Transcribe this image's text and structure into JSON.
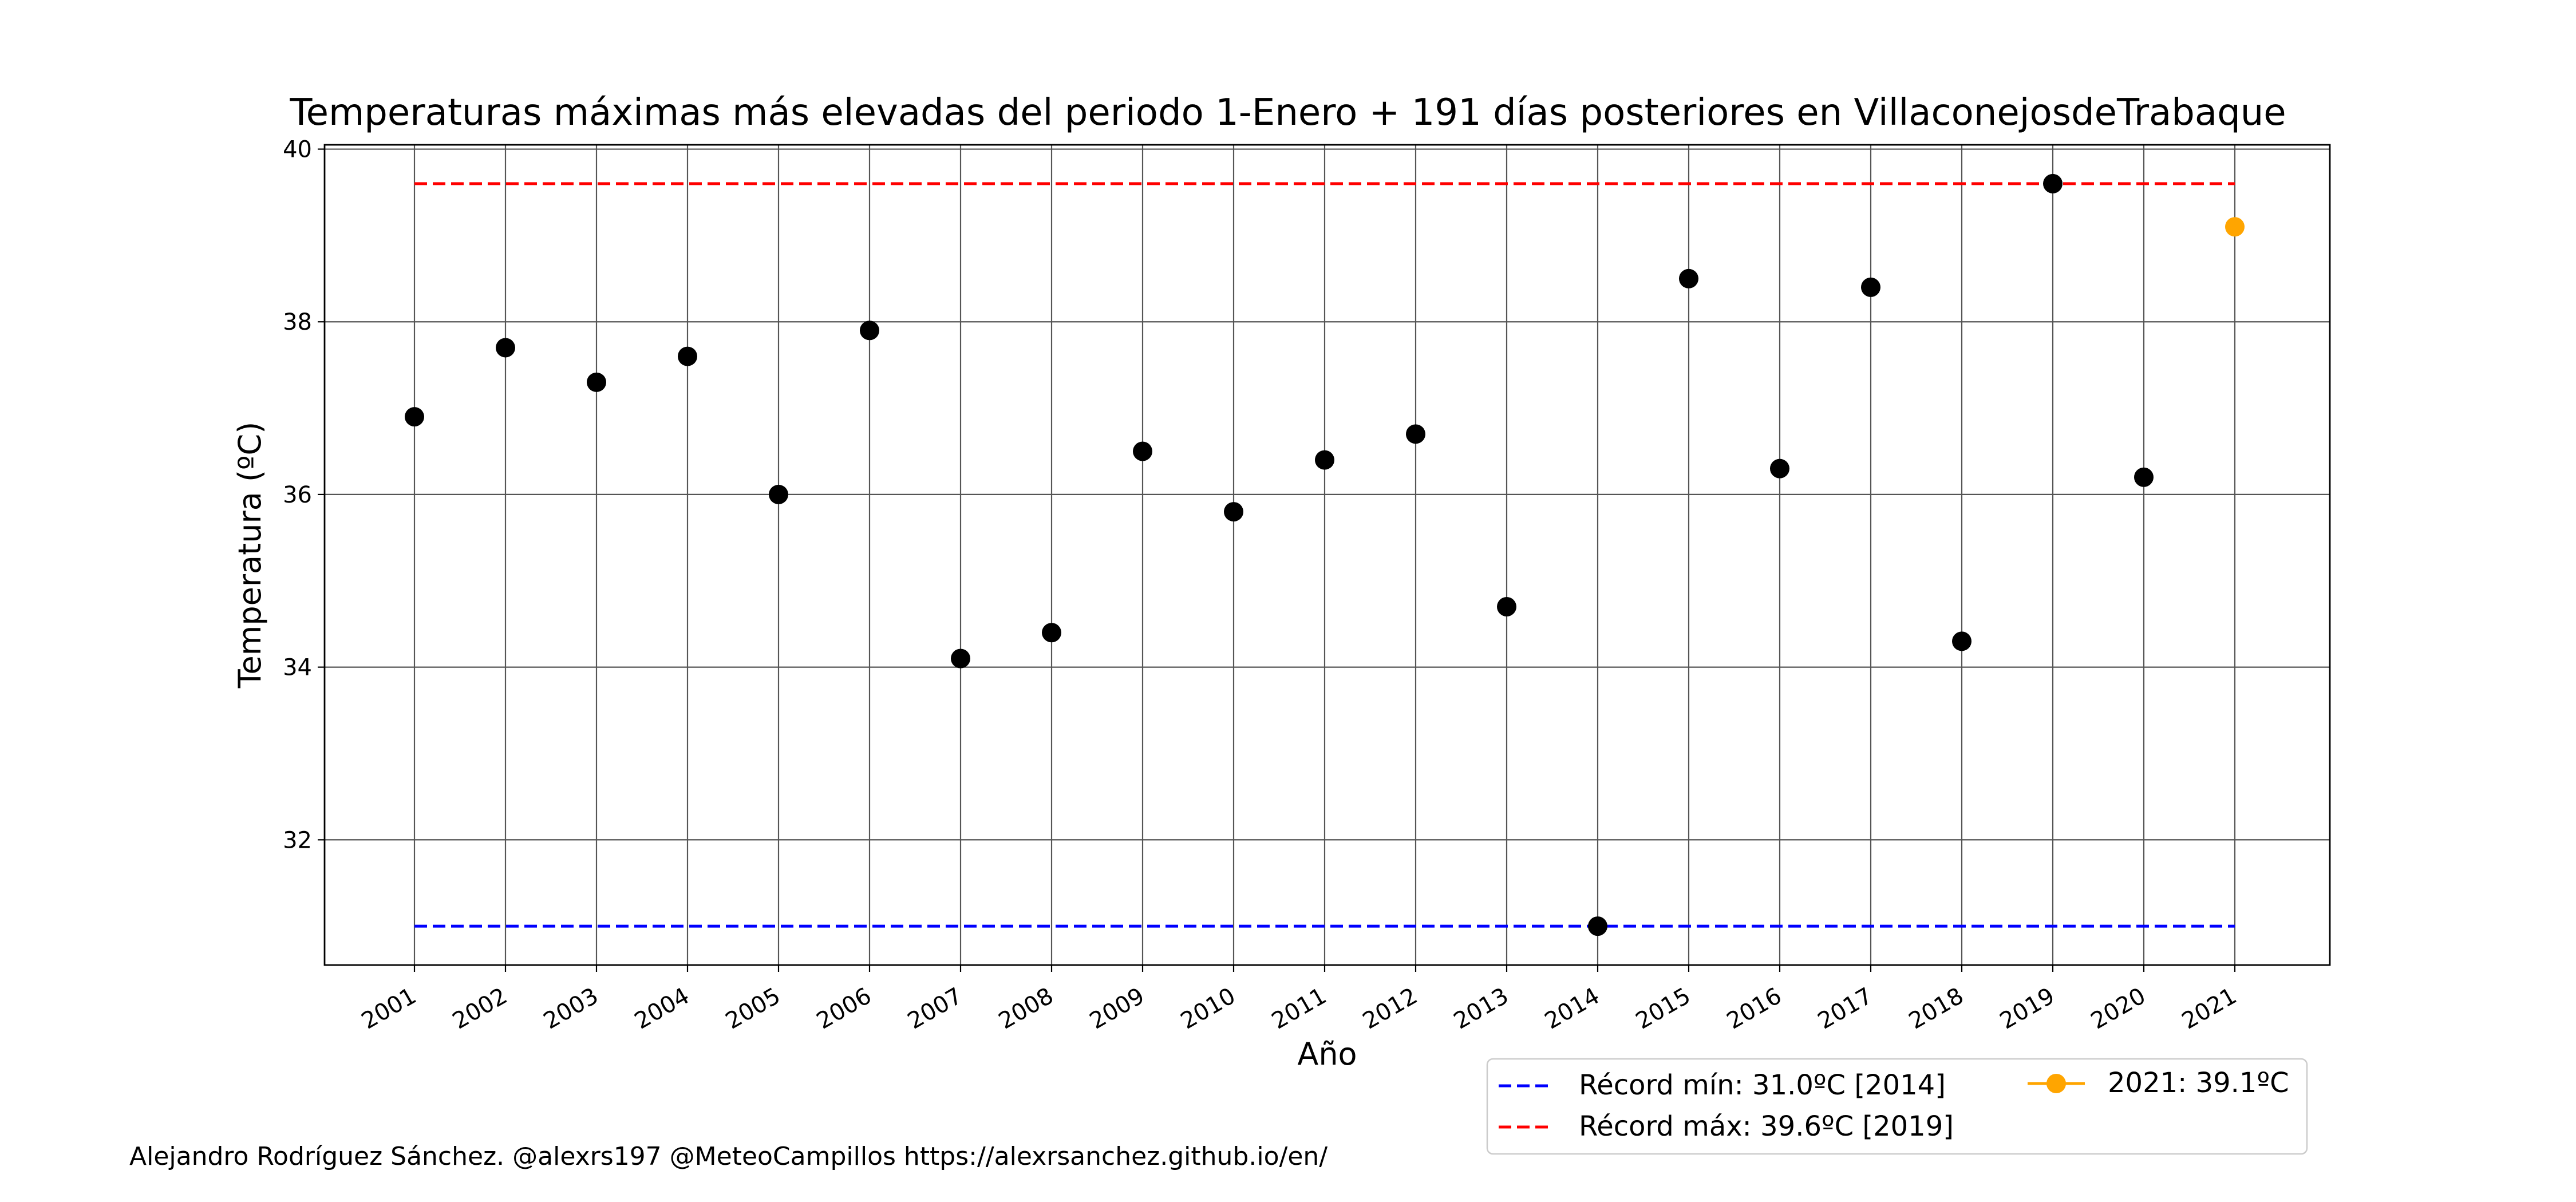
{
  "chart_data": {
    "type": "scatter",
    "title": "Temperaturas máximas más elevadas del periodo 1-Enero + 191 días posteriores en VillaconejosdeTrabaque",
    "xlabel": "Año",
    "ylabel": "Temperatura (ºC)",
    "categories": [
      "2001",
      "2002",
      "2003",
      "2004",
      "2005",
      "2006",
      "2007",
      "2008",
      "2009",
      "2010",
      "2011",
      "2012",
      "2013",
      "2014",
      "2015",
      "2016",
      "2017",
      "2018",
      "2019",
      "2020",
      "2021"
    ],
    "yticks": [
      "32",
      "34",
      "36",
      "38",
      "40"
    ],
    "ylim": [
      30.55,
      40.05
    ],
    "grid": true,
    "legend_position": "bottom-right",
    "series": [
      {
        "name": "",
        "color": "#000000",
        "x": [
          "2001",
          "2002",
          "2003",
          "2004",
          "2005",
          "2006",
          "2007",
          "2008",
          "2009",
          "2010",
          "2011",
          "2012",
          "2013",
          "2014",
          "2015",
          "2016",
          "2017",
          "2018",
          "2019",
          "2020"
        ],
        "values": [
          36.9,
          37.7,
          37.3,
          37.6,
          36.0,
          37.9,
          34.1,
          34.4,
          36.5,
          35.8,
          36.4,
          36.7,
          34.7,
          31.0,
          38.5,
          36.3,
          38.4,
          34.3,
          39.6,
          36.2
        ]
      },
      {
        "name": "2021: 39.1ºC",
        "color": "#ffa500",
        "x": [
          "2021"
        ],
        "values": [
          39.1
        ]
      }
    ],
    "reference_lines": [
      {
        "name": "Récord mín: 31.0ºC [2014]",
        "value": 31.0,
        "color": "#0000ff",
        "style": "dashed"
      },
      {
        "name": "Récord máx: 39.6ºC [2019]",
        "value": 39.6,
        "color": "#ff0000",
        "style": "dashed"
      }
    ]
  },
  "credits": "Alejandro Rodríguez Sánchez. @alexrs197 @MeteoCampillos   https://alexrsanchez.github.io/en/"
}
